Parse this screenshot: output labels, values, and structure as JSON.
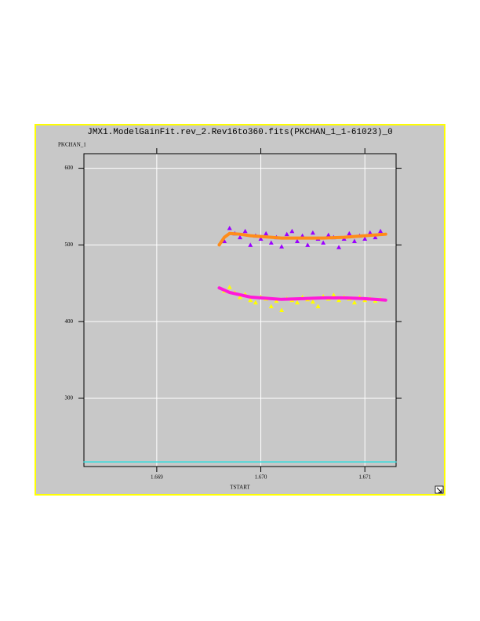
{
  "chart_data": {
    "type": "scatter",
    "title": "JMX1.ModelGainFit.rev_2.Rev16to360.fits(PKCHAN_1_1-61023)_0",
    "ylabel": "PKCHAN_1",
    "xlabel": "TSTART",
    "xlim": [
      1.6683,
      1.6713
    ],
    "ylim": [
      211,
      619
    ],
    "xticks": [
      1.669,
      {
        "value": 1.67,
        "label": "1.670"
      },
      1.671
    ],
    "yticks": [
      300,
      400,
      500,
      600
    ],
    "grid": true,
    "grid_color": "#ffffff",
    "background": "#c8c8c8",
    "frame_color": "#ffff00",
    "series": [
      {
        "style": "markers",
        "color": "#9b00ff",
        "x": [
          1.66965,
          1.6697,
          1.66975,
          1.6698,
          1.66985,
          1.6699,
          1.66995,
          1.67,
          1.67005,
          1.6701,
          1.67015,
          1.6702,
          1.67025,
          1.6703,
          1.67035,
          1.6704,
          1.67045,
          1.6705,
          1.67055,
          1.6706,
          1.67065,
          1.6707,
          1.67075,
          1.6708,
          1.67085,
          1.6709,
          1.67095,
          1.671,
          1.67105,
          1.6711,
          1.67115
        ],
        "values": [
          505,
          522,
          515,
          510,
          518,
          500,
          512,
          508,
          515,
          503,
          510,
          498,
          514,
          518,
          505,
          512,
          500,
          516,
          508,
          503,
          513,
          510,
          497,
          508,
          515,
          505,
          512,
          508,
          516,
          510,
          518
        ]
      },
      {
        "style": "markers",
        "color": "#ffff00",
        "x": [
          1.66965,
          1.6697,
          1.66975,
          1.6698,
          1.66985,
          1.6699,
          1.66995,
          1.67,
          1.67005,
          1.6701,
          1.67015,
          1.6702,
          1.67025,
          1.6703,
          1.67035,
          1.6704,
          1.67045,
          1.6705,
          1.67055,
          1.6706,
          1.67065,
          1.6707,
          1.67075,
          1.6708,
          1.67085,
          1.6709,
          1.67095,
          1.671,
          1.67105,
          1.6711,
          1.67115
        ],
        "values": [
          440,
          445,
          438,
          432,
          436,
          428,
          425,
          432,
          430,
          420,
          427,
          415,
          430,
          428,
          425,
          432,
          429,
          426,
          420,
          433,
          430,
          435,
          428,
          432,
          430,
          425,
          432,
          428,
          430,
          427,
          429
        ]
      },
      {
        "style": "line",
        "color": "#ff8c1a",
        "x": [
          1.6696,
          1.66965,
          1.6697,
          1.6698,
          1.6699,
          1.67,
          1.6701,
          1.6702,
          1.6704,
          1.6706,
          1.6708,
          1.671,
          1.6712
        ],
        "values": [
          500,
          510,
          515,
          514,
          512,
          511,
          510,
          509,
          509,
          509,
          510,
          512,
          514
        ]
      },
      {
        "style": "line",
        "color": "#ff1ad9",
        "x": [
          1.6696,
          1.66965,
          1.6697,
          1.6698,
          1.6699,
          1.67,
          1.6701,
          1.6702,
          1.6704,
          1.6706,
          1.6708,
          1.671,
          1.6712
        ],
        "values": [
          444,
          441,
          438,
          435,
          432,
          431,
          430,
          429,
          430,
          431,
          431,
          430,
          428
        ]
      },
      {
        "style": "line",
        "color": "#33dddd",
        "x": [
          1.6683,
          1.6713
        ],
        "values": [
          217,
          217
        ]
      }
    ]
  }
}
